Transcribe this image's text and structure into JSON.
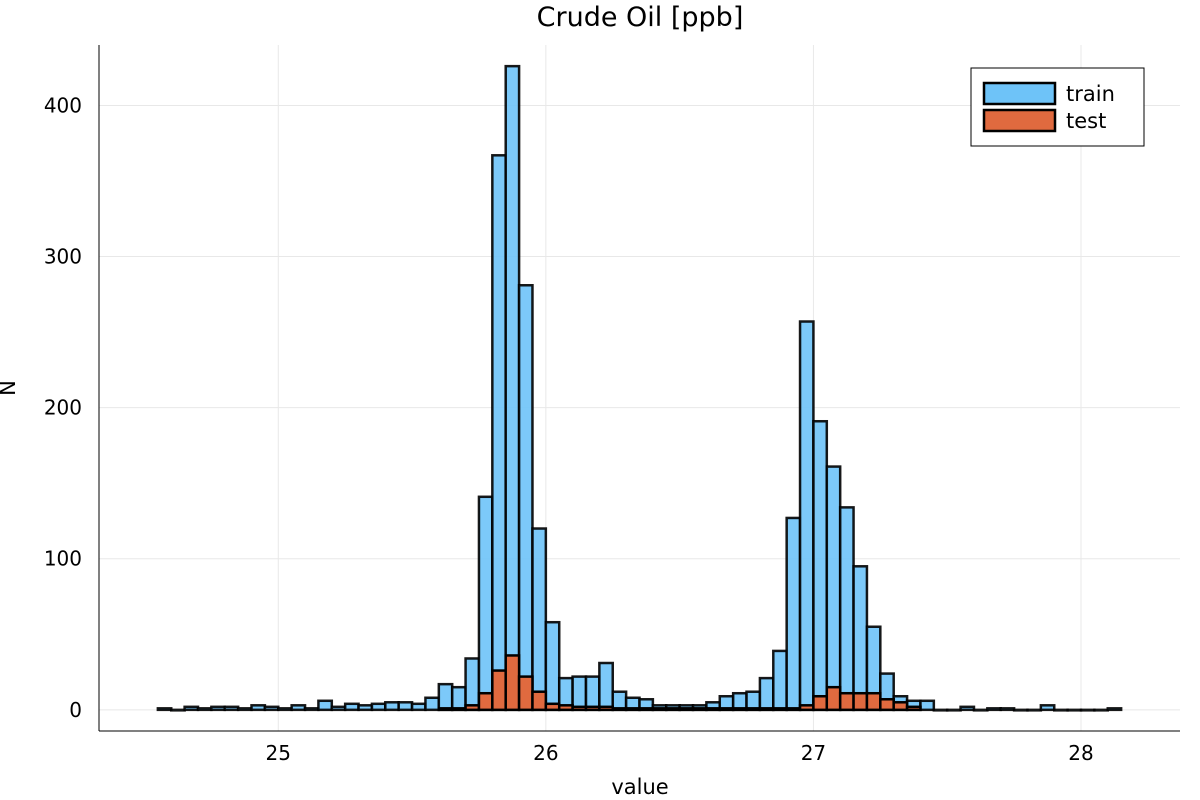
{
  "chart_data": {
    "type": "bar",
    "title": "Crude Oil [ppb]",
    "xlabel": "value",
    "ylabel": "N",
    "xlim": [
      24.33,
      28.37
    ],
    "ylim": [
      -14,
      440
    ],
    "xticks": [
      "25",
      "26",
      "27",
      "28"
    ],
    "yticks": [
      "0",
      "100",
      "200",
      "300",
      "400"
    ],
    "grid": true,
    "legend_position": "top-right",
    "bin_width": 0.05,
    "colors": {
      "train": "#6EC3F8",
      "test": "#E06A3F",
      "edge": "#000000",
      "grid": "#E8E8E8"
    },
    "series": [
      {
        "name": "train",
        "bin_start": 24.55,
        "values": [
          1,
          0,
          2,
          1,
          2,
          2,
          1,
          3,
          2,
          1,
          3,
          1,
          6,
          2,
          4,
          3,
          4,
          5,
          5,
          4,
          8,
          17,
          15,
          34,
          141,
          367,
          426,
          281,
          120,
          58,
          21,
          22,
          22,
          31,
          12,
          8,
          7,
          3,
          3,
          3,
          3,
          5,
          9,
          11,
          12,
          21,
          39,
          127,
          257,
          191,
          161,
          134,
          95,
          55,
          24,
          9,
          6,
          6,
          0,
          0,
          2,
          0,
          1,
          1,
          0,
          0,
          3,
          0,
          0,
          0,
          0,
          1
        ]
      },
      {
        "name": "test",
        "bin_start": 25.6,
        "values": [
          1,
          1,
          3,
          11,
          26,
          36,
          22,
          12,
          4,
          3,
          2,
          2,
          2,
          1,
          1,
          1,
          1,
          1,
          1,
          1,
          1,
          1,
          1,
          1,
          1,
          1,
          1,
          3,
          9,
          15,
          11,
          11,
          11,
          7,
          5,
          2
        ]
      }
    ]
  }
}
